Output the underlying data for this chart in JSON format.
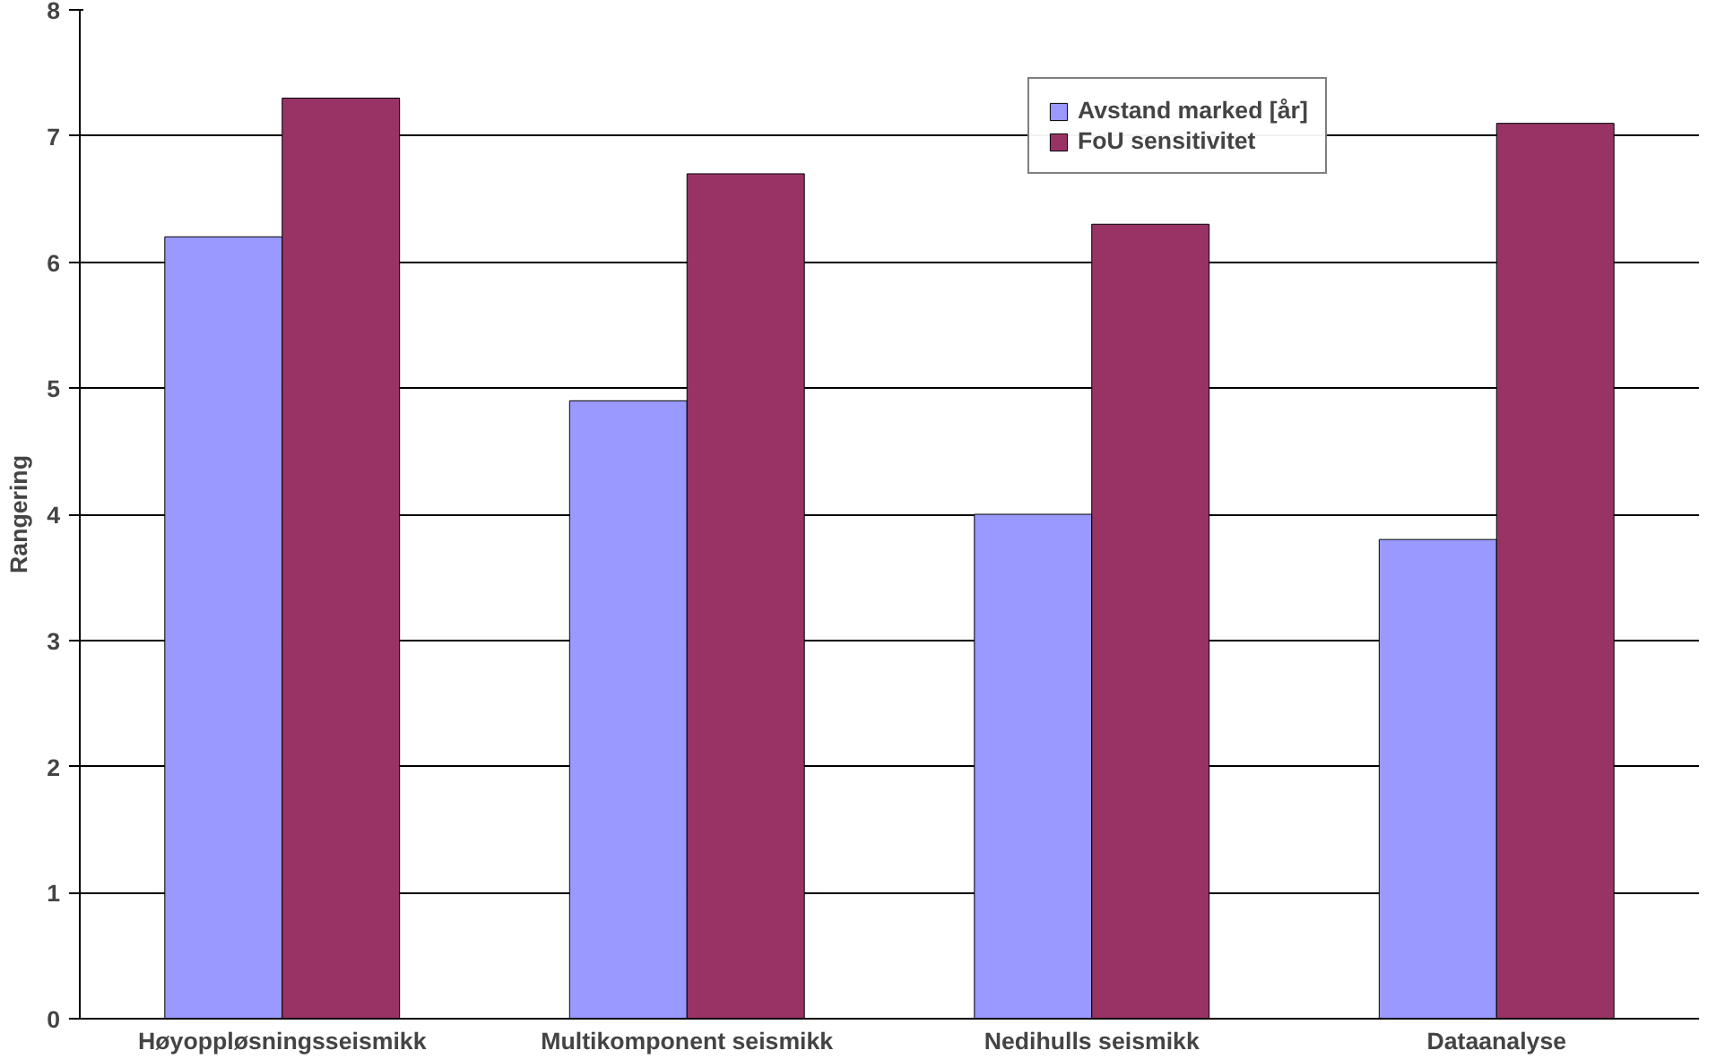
{
  "chart_data": {
    "type": "bar",
    "ylabel": "Rangering",
    "categories": [
      "Høyoppløsningsseismikk",
      "Multikomponent seismikk",
      "Nedihulls seismikk",
      "Dataanalyse"
    ],
    "series": [
      {
        "name": "Avstand marked [år]",
        "color": "#9999ff",
        "values": [
          6.2,
          4.9,
          4.0,
          3.8
        ]
      },
      {
        "name": "FoU sensitivitet",
        "color": "#993366",
        "values": [
          7.3,
          6.7,
          6.3,
          7.1
        ]
      }
    ],
    "ylim": [
      0,
      8
    ],
    "yticks": [
      0,
      1,
      2,
      3,
      4,
      5,
      6,
      7,
      8
    ],
    "grid": "y",
    "legend": "top right"
  }
}
